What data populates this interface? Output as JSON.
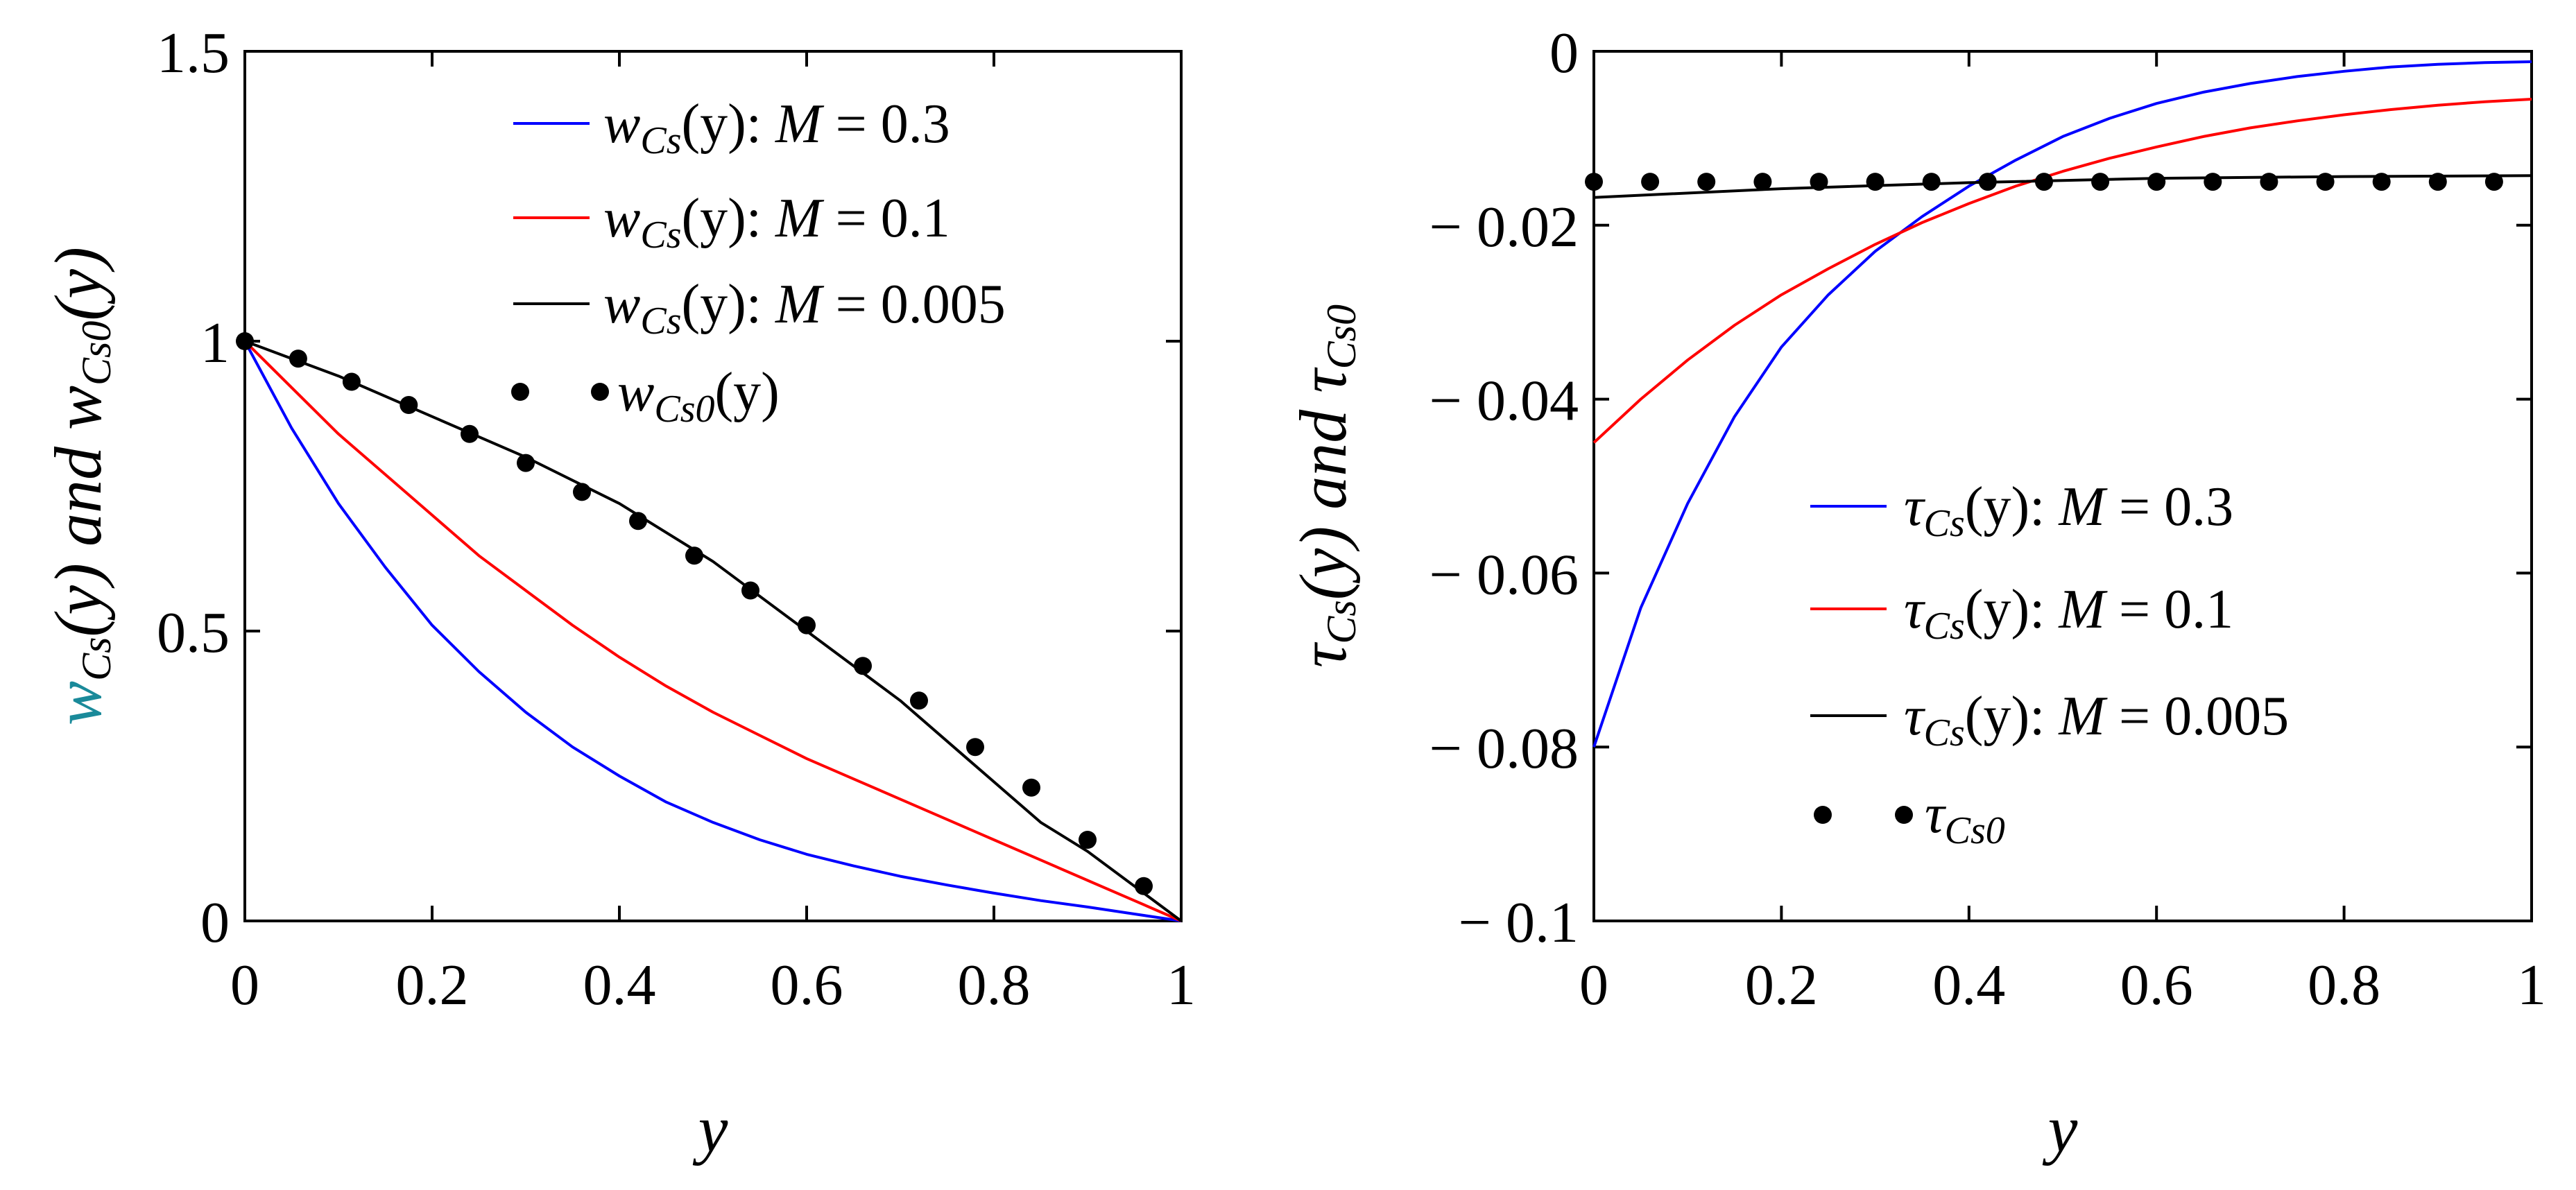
{
  "chart_data": [
    {
      "type": "line",
      "xlabel": "y",
      "ylabel": {
        "w1": "w",
        "sub1": "Cs",
        "arg1": "(y)",
        "mid": " and ",
        "w2": "w",
        "sub2": "Cs0",
        "arg2": "(y)"
      },
      "xlim": [
        0,
        1
      ],
      "ylim": [
        0,
        1.5
      ],
      "x_ticks": [
        "0",
        "0.2",
        "0.4",
        "0.6",
        "0.8",
        "1"
      ],
      "y_ticks": [
        "0",
        "0.5",
        "1",
        "1.5"
      ],
      "legend_position": "top-right",
      "series": [
        {
          "key": "m03",
          "style": "line",
          "color": "#0000ff",
          "legend": {
            "sym": "w",
            "sub": "Cs",
            "arg": "(y)",
            "mtext": ": ",
            "mvar": "M",
            "mval": " = 0.3"
          },
          "x": [
            0,
            0.05,
            0.1,
            0.15,
            0.2,
            0.25,
            0.3,
            0.35,
            0.4,
            0.45,
            0.5,
            0.55,
            0.6,
            0.65,
            0.7,
            0.75,
            0.8,
            0.85,
            0.9,
            0.95,
            1
          ],
          "y": [
            1.0,
            0.85,
            0.72,
            0.61,
            0.51,
            0.43,
            0.36,
            0.3,
            0.25,
            0.205,
            0.17,
            0.14,
            0.115,
            0.095,
            0.077,
            0.062,
            0.048,
            0.035,
            0.024,
            0.012,
            0
          ]
        },
        {
          "key": "m01",
          "style": "line",
          "color": "#ff0000",
          "legend": {
            "sym": "w",
            "sub": "Cs",
            "arg": "(y)",
            "mtext": ": ",
            "mvar": "M",
            "mval": " = 0.1"
          },
          "x": [
            0,
            0.05,
            0.1,
            0.15,
            0.2,
            0.25,
            0.3,
            0.35,
            0.4,
            0.45,
            0.5,
            0.55,
            0.6,
            0.65,
            0.7,
            0.75,
            0.8,
            0.85,
            0.9,
            0.95,
            1
          ],
          "y": [
            1.0,
            0.92,
            0.84,
            0.77,
            0.7,
            0.63,
            0.57,
            0.51,
            0.455,
            0.405,
            0.36,
            0.32,
            0.28,
            0.245,
            0.21,
            0.175,
            0.14,
            0.105,
            0.07,
            0.035,
            0
          ]
        },
        {
          "key": "m0005",
          "style": "line",
          "color": "#000000",
          "legend": {
            "sym": "w",
            "sub": "Cs",
            "arg": "(y)",
            "mtext": ": ",
            "mvar": "M",
            "mval": " = 0.005"
          },
          "x": [
            0,
            0.1,
            0.2,
            0.3,
            0.4,
            0.5,
            0.6,
            0.7,
            0.8,
            0.85,
            0.9,
            0.95,
            1
          ],
          "y": [
            1.0,
            0.94,
            0.87,
            0.8,
            0.72,
            0.62,
            0.5,
            0.38,
            0.24,
            0.17,
            0.12,
            0.06,
            0
          ]
        },
        {
          "key": "w0",
          "style": "dots",
          "color": "#000000",
          "legend": {
            "sym": "w",
            "sub": "Cs0",
            "arg": "(y)"
          },
          "x": [
            0,
            0.057,
            0.114,
            0.175,
            0.24,
            0.3,
            0.36,
            0.42,
            0.48,
            0.54,
            0.6,
            0.66,
            0.72,
            0.78,
            0.84,
            0.9,
            0.96
          ],
          "y": [
            1.0,
            0.97,
            0.93,
            0.89,
            0.84,
            0.79,
            0.74,
            0.69,
            0.63,
            0.57,
            0.51,
            0.44,
            0.38,
            0.3,
            0.23,
            0.14,
            0.06
          ]
        }
      ]
    },
    {
      "type": "line",
      "xlabel": "y",
      "ylabel": {
        "w1": "τ",
        "sub1": "Cs",
        "arg1": "(y)",
        "mid": " and ",
        "w2": "τ",
        "sub2": "Cs0",
        "arg2": ""
      },
      "xlim": [
        0,
        1
      ],
      "ylim": [
        -0.1,
        0
      ],
      "x_ticks": [
        "0",
        "0.2",
        "0.4",
        "0.6",
        "0.8",
        "1"
      ],
      "y_ticks": [
        "− 0.1",
        "− 0.08",
        "− 0.06",
        "− 0.04",
        "− 0.02",
        "0"
      ],
      "legend_position": "center-right",
      "series": [
        {
          "key": "m03",
          "style": "line",
          "color": "#0000ff",
          "legend": {
            "sym": "τ",
            "sub": "Cs",
            "arg": "(y)",
            "mtext": ": ",
            "mvar": "M",
            "mval": " = 0.3"
          },
          "x": [
            0,
            0.05,
            0.1,
            0.15,
            0.2,
            0.25,
            0.3,
            0.35,
            0.4,
            0.45,
            0.5,
            0.55,
            0.6,
            0.65,
            0.7,
            0.75,
            0.8,
            0.85,
            0.9,
            0.95,
            1
          ],
          "y": [
            -0.08,
            -0.064,
            -0.052,
            -0.042,
            -0.034,
            -0.028,
            -0.023,
            -0.019,
            -0.0155,
            -0.0125,
            -0.0098,
            -0.0077,
            -0.006,
            -0.0047,
            -0.0037,
            -0.0029,
            -0.0023,
            -0.0018,
            -0.0015,
            -0.0013,
            -0.0012
          ]
        },
        {
          "key": "m01",
          "style": "line",
          "color": "#ff0000",
          "legend": {
            "sym": "τ",
            "sub": "Cs",
            "arg": "(y)",
            "mtext": ": ",
            "mvar": "M",
            "mval": " = 0.1"
          },
          "x": [
            0,
            0.05,
            0.1,
            0.15,
            0.2,
            0.25,
            0.3,
            0.35,
            0.4,
            0.45,
            0.5,
            0.55,
            0.6,
            0.65,
            0.7,
            0.75,
            0.8,
            0.85,
            0.9,
            0.95,
            1
          ],
          "y": [
            -0.045,
            -0.04,
            -0.0355,
            -0.0315,
            -0.028,
            -0.025,
            -0.0222,
            -0.0197,
            -0.0175,
            -0.0155,
            -0.0138,
            -0.0123,
            -0.011,
            -0.0098,
            -0.0088,
            -0.008,
            -0.0073,
            -0.0067,
            -0.0062,
            -0.0058,
            -0.0055
          ]
        },
        {
          "key": "m0005",
          "style": "line",
          "color": "#000000",
          "legend": {
            "sym": "τ",
            "sub": "Cs",
            "arg": "(y)",
            "mtext": ": ",
            "mvar": "M",
            "mval": " = 0.005"
          },
          "x": [
            0,
            0.2,
            0.4,
            0.6,
            0.8,
            1
          ],
          "y": [
            -0.0168,
            -0.0158,
            -0.0151,
            -0.0146,
            -0.0144,
            -0.0143
          ]
        },
        {
          "key": "t0",
          "style": "dots",
          "color": "#000000",
          "legend": {
            "sym": "τ",
            "sub": "Cs0",
            "arg": ""
          },
          "x": [
            0,
            0.06,
            0.12,
            0.18,
            0.24,
            0.3,
            0.36,
            0.42,
            0.48,
            0.54,
            0.6,
            0.66,
            0.72,
            0.78,
            0.84,
            0.9,
            0.96
          ],
          "y": [
            -0.015,
            -0.015,
            -0.015,
            -0.015,
            -0.015,
            -0.015,
            -0.015,
            -0.015,
            -0.015,
            -0.015,
            -0.015,
            -0.015,
            -0.015,
            -0.015,
            -0.015,
            -0.015,
            -0.015
          ]
        }
      ]
    }
  ]
}
